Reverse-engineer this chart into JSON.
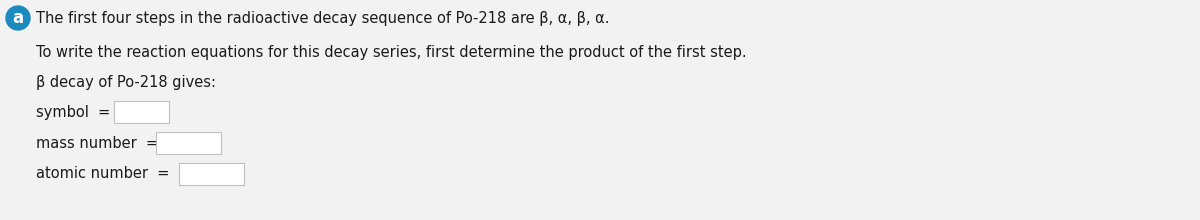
{
  "bg_color": "#f2f2f2",
  "badge_color": "#1a8abf",
  "badge_text": "a",
  "badge_text_color": "#ffffff",
  "line1": "The first four steps in the radioactive decay sequence of Po-218 are β, α, β, α.",
  "line2": "To write the reaction equations for this decay series, first determine the product of the first step.",
  "line3": "β decay of Po-218 gives:",
  "label_symbol": "symbol  =",
  "label_mass": "mass number  =",
  "label_atomic": "atomic number  =",
  "text_color": "#1a1a1a",
  "input_box_color": "#ffffff",
  "input_box_border": "#c0c0c0",
  "font_size": 10.5,
  "badge_font_size": 12
}
